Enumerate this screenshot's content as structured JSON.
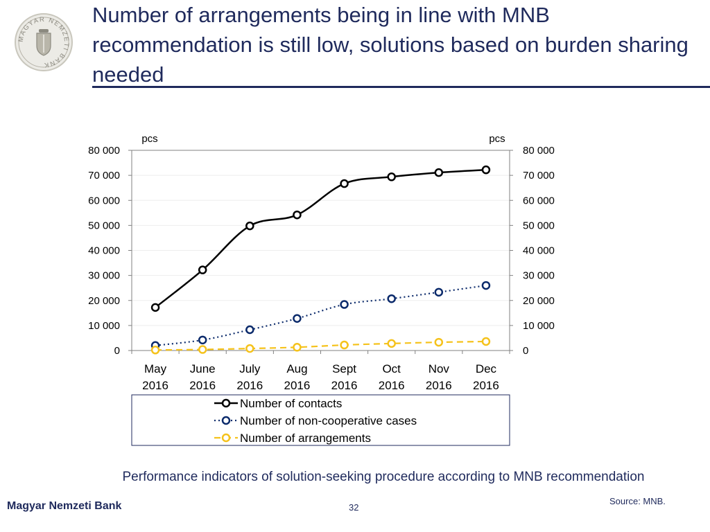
{
  "slide": {
    "title": "Number of arrangements being in line with MNB recommendation is still low, solutions based on burden sharing needed",
    "caption": "Performance indicators of solution-seeking procedure according to MNB recommendation",
    "footer": "Magyar Nemzeti Bank",
    "page_number": "32",
    "source": "Source: MNB.",
    "logo_text": "MAGYAR NEMZETI BANK",
    "accent_color": "#1f2a5c"
  },
  "chart_data": {
    "type": "line",
    "categories": [
      [
        "May",
        "2016"
      ],
      [
        "June",
        "2016"
      ],
      [
        "July",
        "2016"
      ],
      [
        "Aug",
        "2016"
      ],
      [
        "Sept",
        "2016"
      ],
      [
        "Oct",
        "2016"
      ],
      [
        "Nov",
        "2016"
      ],
      [
        "Dec",
        "2016"
      ]
    ],
    "ylim": [
      0,
      80000
    ],
    "yticks": [
      0,
      10000,
      20000,
      30000,
      40000,
      50000,
      60000,
      70000,
      80000
    ],
    "ytick_labels": [
      "0",
      "10 000",
      "20 000",
      "30 000",
      "40 000",
      "50 000",
      "60 000",
      "70 000",
      "80 000"
    ],
    "ylabel_left": "pcs",
    "ylabel_right": "pcs",
    "grid": true,
    "legend_position": "bottom",
    "series": [
      {
        "name": "Number of contacts",
        "values": [
          17200,
          32200,
          49800,
          54200,
          66700,
          69400,
          71100,
          72200
        ],
        "color": "#000000",
        "style": "solid"
      },
      {
        "name": "Number of non-cooperative cases",
        "values": [
          2000,
          4200,
          8300,
          12800,
          18400,
          20700,
          23300,
          26000
        ],
        "color": "#0b2a6b",
        "style": "dotted"
      },
      {
        "name": "Number of arrangements",
        "values": [
          200,
          400,
          800,
          1300,
          2200,
          2800,
          3300,
          3600
        ],
        "color": "#f5c21b",
        "style": "dashed"
      }
    ]
  }
}
